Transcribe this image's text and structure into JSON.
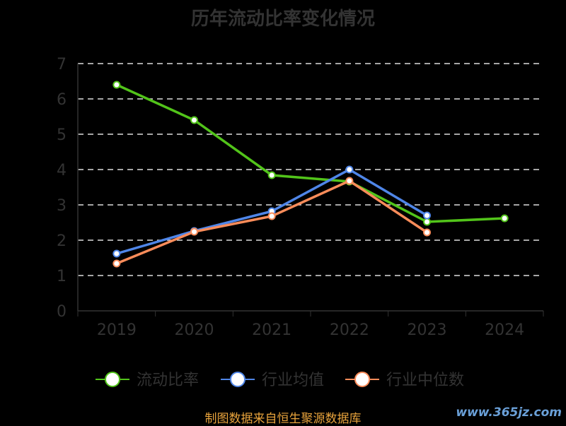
{
  "chart_data": {
    "type": "line",
    "title": "历年流动比率变化情况",
    "categories": [
      "2019",
      "2020",
      "2021",
      "2022",
      "2023",
      "2024"
    ],
    "ylim": [
      0,
      7
    ],
    "yticks": [
      "0",
      "1",
      "2",
      "3",
      "4",
      "5",
      "6",
      "7"
    ],
    "grid": true,
    "legend_position": "bottom",
    "series": [
      {
        "name": "流动比率",
        "color": "#52c41a",
        "values": [
          6.4,
          5.4,
          3.84,
          3.66,
          2.52,
          2.62
        ]
      },
      {
        "name": "行业均值",
        "color": "#4f86e8",
        "values": [
          1.62,
          2.26,
          2.82,
          4.0,
          2.7,
          null
        ]
      },
      {
        "name": "行业中位数",
        "color": "#fa8c5a",
        "values": [
          1.34,
          2.24,
          2.68,
          3.68,
          2.22,
          null
        ]
      }
    ]
  },
  "source": "制图数据来自恒生聚源数据库",
  "watermark": "www.365jz.com"
}
